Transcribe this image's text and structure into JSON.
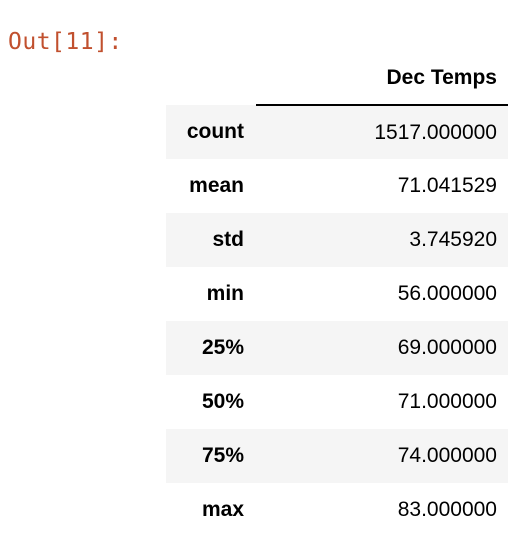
{
  "output_prompt": "Out[11]:",
  "table": {
    "column_header": "Dec Temps",
    "rows": [
      {
        "label": "count",
        "value": "1517.000000"
      },
      {
        "label": "mean",
        "value": "71.041529"
      },
      {
        "label": "std",
        "value": "3.745920"
      },
      {
        "label": "min",
        "value": "56.000000"
      },
      {
        "label": "25%",
        "value": "69.000000"
      },
      {
        "label": "50%",
        "value": "71.000000"
      },
      {
        "label": "75%",
        "value": "74.000000"
      },
      {
        "label": "max",
        "value": "83.000000"
      }
    ]
  },
  "colors": {
    "prompt": "#c1502e",
    "stripe": "#f5f5f5"
  }
}
